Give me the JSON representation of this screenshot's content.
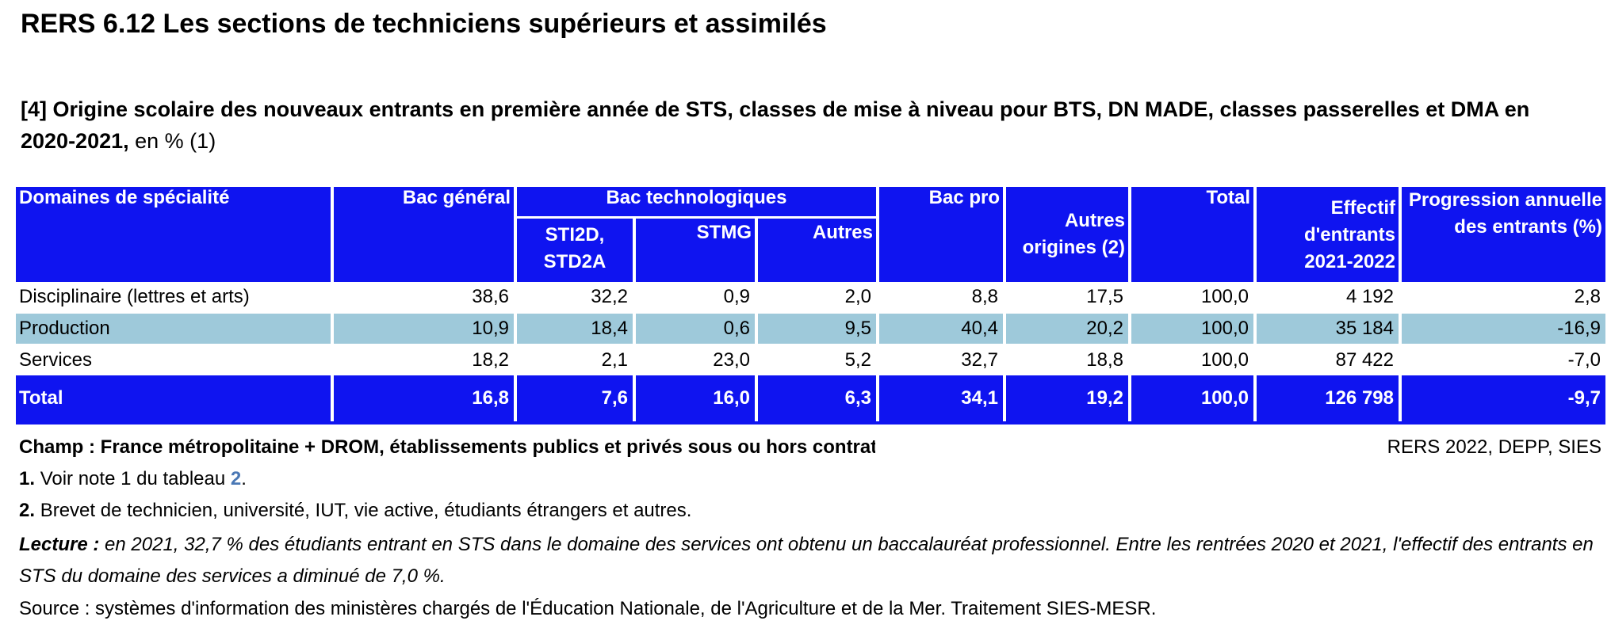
{
  "title": "RERS 6.12 Les sections de techniciens supérieurs et assimilés",
  "subtitle": {
    "number": "[4]",
    "bold_text": "Origine scolaire des nouveaux entrants en première année de STS, classes de mise à niveau pour BTS, DN MADE, classes passerelles et DMA en 2020-2021,",
    "unit": "en % (1)"
  },
  "table": {
    "headers": {
      "domaines": "Domaines de spécialité",
      "bac_general": "Bac général",
      "bac_techno": "Bac technologiques",
      "sti2d": "STI2D, STD2A",
      "stmg": "STMG",
      "autres": "Autres",
      "bac_pro": "Bac pro",
      "autres_origines": "Autres origines (2)",
      "total": "Total",
      "effectif": "Effectif d'entrants 2021-2022",
      "progression": "Progression annuelle des entrants (%)"
    },
    "rows": [
      {
        "domaine": "Disciplinaire (lettres et arts)",
        "bac_general": "38,6",
        "sti2d": "32,2",
        "stmg": "0,9",
        "autres": "2,0",
        "bac_pro": "8,8",
        "autres_origines": "17,5",
        "total": "100,0",
        "effectif": "4 192",
        "progression": "2,8"
      },
      {
        "domaine": "Production",
        "bac_general": "10,9",
        "sti2d": "18,4",
        "stmg": "0,6",
        "autres": "9,5",
        "bac_pro": "40,4",
        "autres_origines": "20,2",
        "total": "100,0",
        "effectif": "35 184",
        "progression": "-16,9"
      },
      {
        "domaine": "Services",
        "bac_general": "18,2",
        "sti2d": "2,1",
        "stmg": "23,0",
        "autres": "5,2",
        "bac_pro": "32,7",
        "autres_origines": "18,8",
        "total": "100,0",
        "effectif": "87 422",
        "progression": "-7,0"
      }
    ],
    "total_row": {
      "domaine": "Total",
      "bac_general": "16,8",
      "sti2d": "7,6",
      "stmg": "16,0",
      "autres": "6,3",
      "bac_pro": "34,1",
      "autres_origines": "19,2",
      "total": "100,0",
      "effectif": "126 798",
      "progression": "-9,7"
    }
  },
  "champ": "Champ : France métropolitaine + DROM, établissements publics et privés sous ou hors contrat.",
  "source_ref": "RERS 2022, DEPP, SIES",
  "notes": [
    {
      "num": "1.",
      "text": "Voir note 1 du tableau ",
      "link": "2",
      "after": "."
    },
    {
      "num": "2.",
      "text": "Brevet de technicien, université, IUT, vie active, étudiants étrangers et autres."
    }
  ],
  "lecture": {
    "label": "Lecture :",
    "text": "en 2021, 32,7 % des étudiants entrant en STS dans le domaine des services ont obtenu un baccalauréat professionnel. Entre les rentrées 2020 et 2021, l'effectif des entrants en STS du domaine des services a diminué de 7,0 %."
  },
  "source": "Source : systèmes d'information des ministères chargés de l'Éducation Nationale, de l'Agriculture et de la Mer. Traitement SIES-MESR.",
  "colors": {
    "header_bg": "#0f14f0",
    "shade_bg": "#9ec9da",
    "link": "#4a78b5"
  }
}
